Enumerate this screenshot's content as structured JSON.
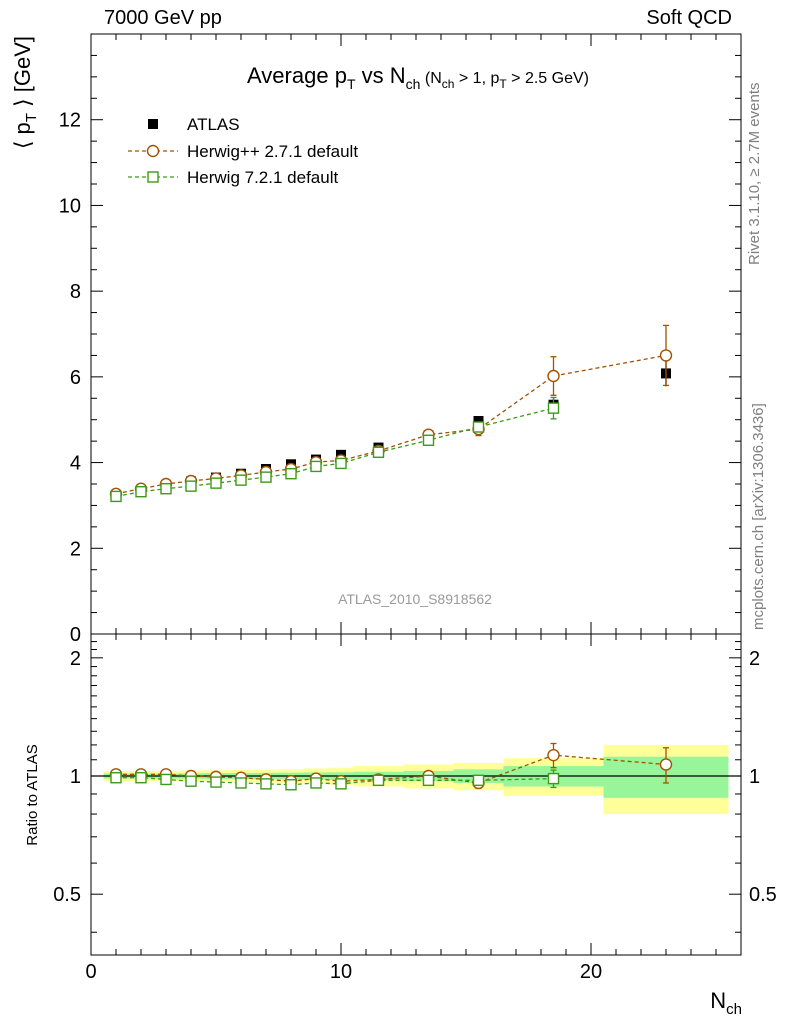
{
  "header": {
    "left": "7000 GeV pp",
    "right": "Soft QCD"
  },
  "side_labels": {
    "rivet": "Rivet 3.1.10, ≥ 2.7M events",
    "mcplots": "mcplots.cern.ch [arXiv:1306.3436]"
  },
  "colors": {
    "atlas": "#000000",
    "herwig_pp": "#a35200",
    "herwig7": "#3d9a1a",
    "band_inner": "#99f599",
    "band_outer": "#ffff99"
  },
  "chart_data": [
    {
      "type": "scatter",
      "title_parts": {
        "main": "Average p",
        "main_sub": "T",
        "vs": " vs N",
        "vs_sub": "ch",
        "cut_open": " (N",
        "cut_sub1": "ch",
        "cut_mid": " > 1, p",
        "cut_sub2": "T",
        "cut_close": " > 2.5 GeV)"
      },
      "ylabel_parts": {
        "open": "⟨ p",
        "sub": "T",
        "close": " ⟩ [GeV]"
      },
      "watermark": "ATLAS_2010_S8918562",
      "xlim": [
        0,
        26
      ],
      "ylim": [
        0,
        14
      ],
      "yticks": [
        0,
        2,
        4,
        6,
        8,
        10,
        12
      ],
      "ytick_labels": [
        "0",
        "2",
        "4",
        "6",
        "8",
        "10",
        "12"
      ],
      "legend_position": "top-left",
      "series": [
        {
          "name": "ATLAS",
          "marker": "filled-square",
          "x": [
            1,
            2,
            3,
            4,
            5,
            6,
            7,
            8,
            9,
            10,
            11.5,
            13.5,
            15.5,
            18.5,
            23
          ],
          "y": [
            3.24,
            3.36,
            3.47,
            3.56,
            3.65,
            3.74,
            3.85,
            3.96,
            4.07,
            4.18,
            4.35,
            4.63,
            4.97,
            5.35,
            6.08
          ],
          "err": [
            0.04,
            0.04,
            0.04,
            0.04,
            0.05,
            0.05,
            0.05,
            0.05,
            0.06,
            0.06,
            0.07,
            0.08,
            0.1,
            0.15,
            0.3
          ],
          "xerr": [
            0.5,
            0.5,
            0.5,
            0.5,
            0.5,
            0.5,
            0.5,
            0.5,
            0.5,
            0.5,
            1.0,
            1.0,
            1.0,
            2.0,
            2.5
          ]
        },
        {
          "name": "Herwig++ 2.7.1 default",
          "marker": "open-circle",
          "x": [
            1,
            2,
            3,
            4,
            5,
            6,
            7,
            8,
            9,
            10,
            11.5,
            13.5,
            15.5,
            18.5,
            23
          ],
          "y": [
            3.27,
            3.39,
            3.5,
            3.57,
            3.63,
            3.7,
            3.78,
            3.85,
            4.01,
            4.05,
            4.27,
            4.65,
            4.78,
            6.02,
            6.5
          ],
          "err": [
            0.03,
            0.03,
            0.03,
            0.03,
            0.04,
            0.04,
            0.04,
            0.05,
            0.05,
            0.06,
            0.07,
            0.08,
            0.15,
            0.45,
            0.7
          ]
        },
        {
          "name": "Herwig 7.2.1 default",
          "marker": "open-square",
          "x": [
            1,
            2,
            3,
            4,
            5,
            6,
            7,
            8,
            9,
            10,
            11.5,
            13.5,
            15.5,
            18.5
          ],
          "y": [
            3.21,
            3.32,
            3.39,
            3.45,
            3.52,
            3.59,
            3.66,
            3.74,
            3.91,
            3.98,
            4.24,
            4.52,
            4.83,
            5.27
          ],
          "err": [
            0.03,
            0.03,
            0.03,
            0.03,
            0.04,
            0.04,
            0.04,
            0.05,
            0.05,
            0.05,
            0.07,
            0.08,
            0.1,
            0.25
          ]
        }
      ]
    },
    {
      "type": "scatter",
      "ylabel": "Ratio to ATLAS",
      "xlabel_parts": {
        "main": "N",
        "sub": "ch"
      },
      "xlim": [
        0,
        26
      ],
      "ylim": [
        0.35,
        2.3
      ],
      "y_scale": "log",
      "xticks": [
        0,
        10,
        20
      ],
      "xtick_labels": [
        "0",
        "10",
        "20"
      ],
      "yticks": [
        0.5,
        1,
        2
      ],
      "ytick_labels": [
        "0.5",
        "1",
        "2"
      ],
      "uncertainty_bands": {
        "x_low": [
          0.5,
          1.5,
          2.5,
          3.5,
          4.5,
          5.5,
          6.5,
          7.5,
          8.5,
          9.5,
          10.5,
          12.5,
          14.5,
          16.5,
          20.5
        ],
        "x_high": [
          1.5,
          2.5,
          3.5,
          4.5,
          5.5,
          6.5,
          7.5,
          8.5,
          9.5,
          10.5,
          12.5,
          14.5,
          16.5,
          20.5,
          25.5
        ],
        "inner": [
          0.015,
          0.015,
          0.015,
          0.016,
          0.017,
          0.018,
          0.019,
          0.02,
          0.021,
          0.022,
          0.025,
          0.03,
          0.04,
          0.06,
          0.12
        ],
        "outer": [
          0.03,
          0.03,
          0.03,
          0.032,
          0.034,
          0.036,
          0.038,
          0.04,
          0.045,
          0.05,
          0.06,
          0.07,
          0.08,
          0.11,
          0.2
        ]
      },
      "series": [
        {
          "name": "Herwig++ 2.7.1 default",
          "x": [
            1,
            2,
            3,
            4,
            5,
            6,
            7,
            8,
            9,
            10,
            11.5,
            13.5,
            15.5,
            18.5,
            23
          ],
          "y": [
            1.01,
            1.01,
            1.01,
            1.0,
            0.995,
            0.99,
            0.98,
            0.97,
            0.985,
            0.97,
            0.98,
            1.0,
            0.96,
            1.13,
            1.07
          ],
          "err": [
            0.01,
            0.01,
            0.01,
            0.01,
            0.01,
            0.01,
            0.01,
            0.01,
            0.01,
            0.015,
            0.015,
            0.02,
            0.03,
            0.08,
            0.11
          ]
        },
        {
          "name": "Herwig 7.2.1 default",
          "x": [
            1,
            2,
            3,
            4,
            5,
            6,
            7,
            8,
            9,
            10,
            11.5,
            13.5,
            15.5,
            18.5
          ],
          "y": [
            0.99,
            0.99,
            0.98,
            0.97,
            0.965,
            0.96,
            0.955,
            0.95,
            0.96,
            0.955,
            0.975,
            0.975,
            0.975,
            0.985
          ],
          "err": [
            0.01,
            0.01,
            0.01,
            0.01,
            0.01,
            0.01,
            0.01,
            0.01,
            0.01,
            0.01,
            0.015,
            0.02,
            0.025,
            0.05
          ]
        }
      ]
    }
  ]
}
